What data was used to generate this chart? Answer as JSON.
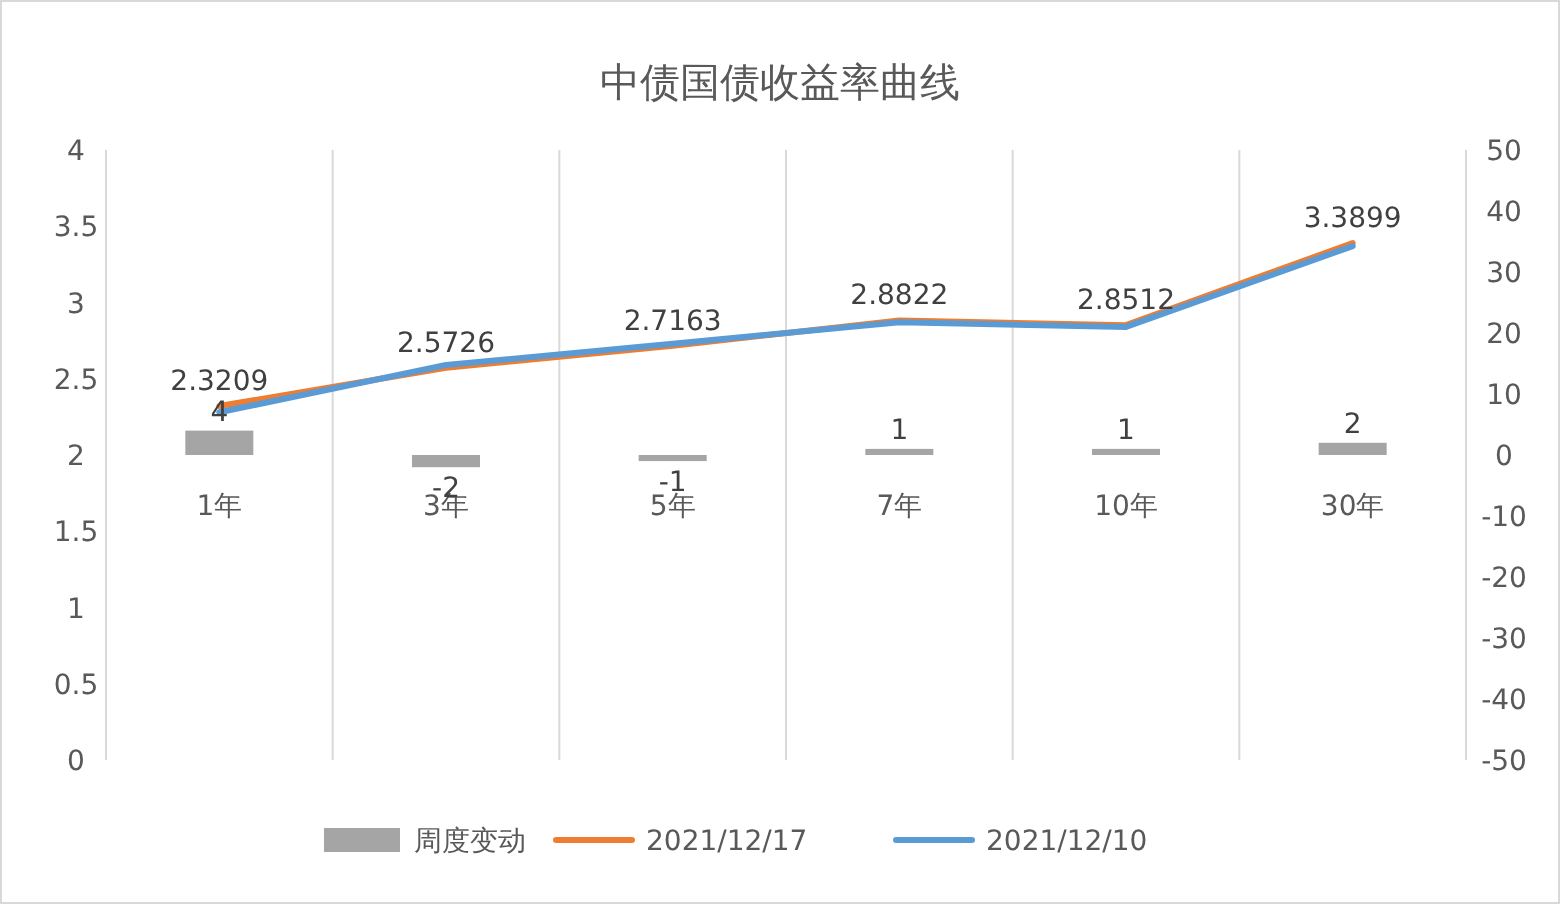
{
  "chart_data": {
    "type": "line",
    "title": "中债国债收益率曲线",
    "categories": [
      "1年",
      "3年",
      "5年",
      "7年",
      "10年",
      "30年"
    ],
    "series": [
      {
        "name": "周度变动",
        "type": "bar",
        "axis": "y2",
        "color": "#a5a5a5",
        "values": [
          4,
          -2,
          -1,
          1,
          1,
          2
        ],
        "value_labels": [
          "4",
          "-2",
          "-1",
          "1",
          "1",
          "2"
        ]
      },
      {
        "name": "2021/12/17",
        "color": "#ed7d31",
        "values": [
          2.3209,
          2.5726,
          2.7163,
          2.8822,
          2.8512,
          3.3899
        ],
        "value_labels": [
          "2.3209",
          "2.5726",
          "2.7163",
          "2.8822",
          "2.8512",
          "3.3899"
        ]
      },
      {
        "name": "2021/12/10",
        "color": "#5b9bd5",
        "values": [
          2.28,
          2.59,
          2.73,
          2.87,
          2.84,
          3.37
        ]
      }
    ],
    "ylim": [
      0,
      4
    ],
    "yticks": [
      0,
      0.5,
      1,
      1.5,
      2,
      2.5,
      3,
      3.5,
      4
    ],
    "y2lim": [
      -50,
      50
    ],
    "y2ticks": [
      -50,
      -40,
      -30,
      -20,
      -10,
      0,
      10,
      20,
      30,
      40,
      50
    ],
    "grid": "x",
    "legend": "bottom",
    "line_style": "solid"
  }
}
